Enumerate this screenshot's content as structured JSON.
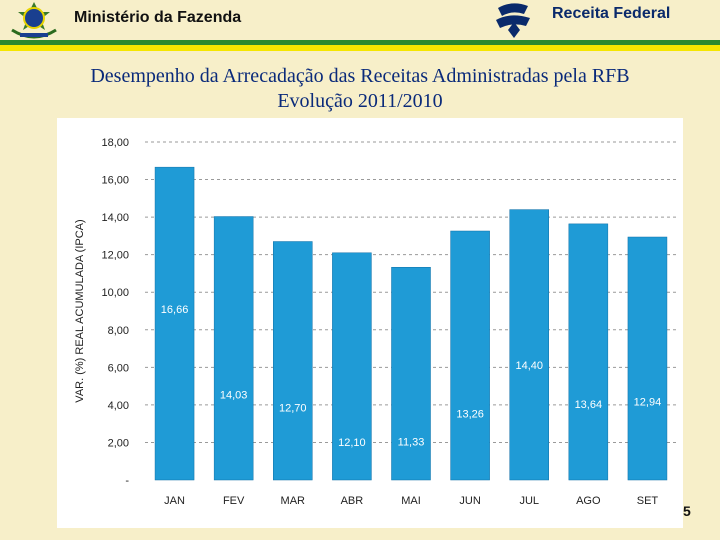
{
  "header": {
    "ministry": "Ministério da Fazenda",
    "agency": "Receita Federal",
    "emblem_icon": "brazil-coat-of-arms-icon",
    "logo_icon": "receita-federal-logo-icon"
  },
  "title": {
    "line1": "Desempenho da Arrecadação das Receitas Administradas pela RFB",
    "line2": "Evolução 2011/2010"
  },
  "page_number": "5",
  "colors": {
    "bar": "#1f9bd6",
    "title": "#0a2a7a",
    "green": "#2b8a2e",
    "yellow": "#f5e600"
  },
  "chart_data": {
    "type": "bar",
    "categories": [
      "JAN",
      "FEV",
      "MAR",
      "ABR",
      "MAI",
      "JUN",
      "JUL",
      "AGO",
      "SET"
    ],
    "values": [
      16.66,
      14.03,
      12.7,
      12.1,
      11.33,
      13.26,
      14.4,
      13.64,
      12.94
    ],
    "data_labels": [
      "16,66",
      "14,03",
      "12,70",
      "12,10",
      "11,33",
      "13,26",
      "14,40",
      "13,64",
      "12,94"
    ],
    "title": "",
    "xlabel": "",
    "ylabel": "VAR. (%) REAL ACUMULADA (IPCA)",
    "ylim": [
      0,
      18
    ],
    "y_ticks": [
      0,
      2,
      4,
      6,
      8,
      10,
      12,
      14,
      16,
      18
    ],
    "y_tick_labels": [
      "-",
      "2,00",
      "4,00",
      "6,00",
      "8,00",
      "10,00",
      "12,00",
      "14,00",
      "16,00",
      "18,00"
    ],
    "grid": true,
    "legend": "none"
  }
}
